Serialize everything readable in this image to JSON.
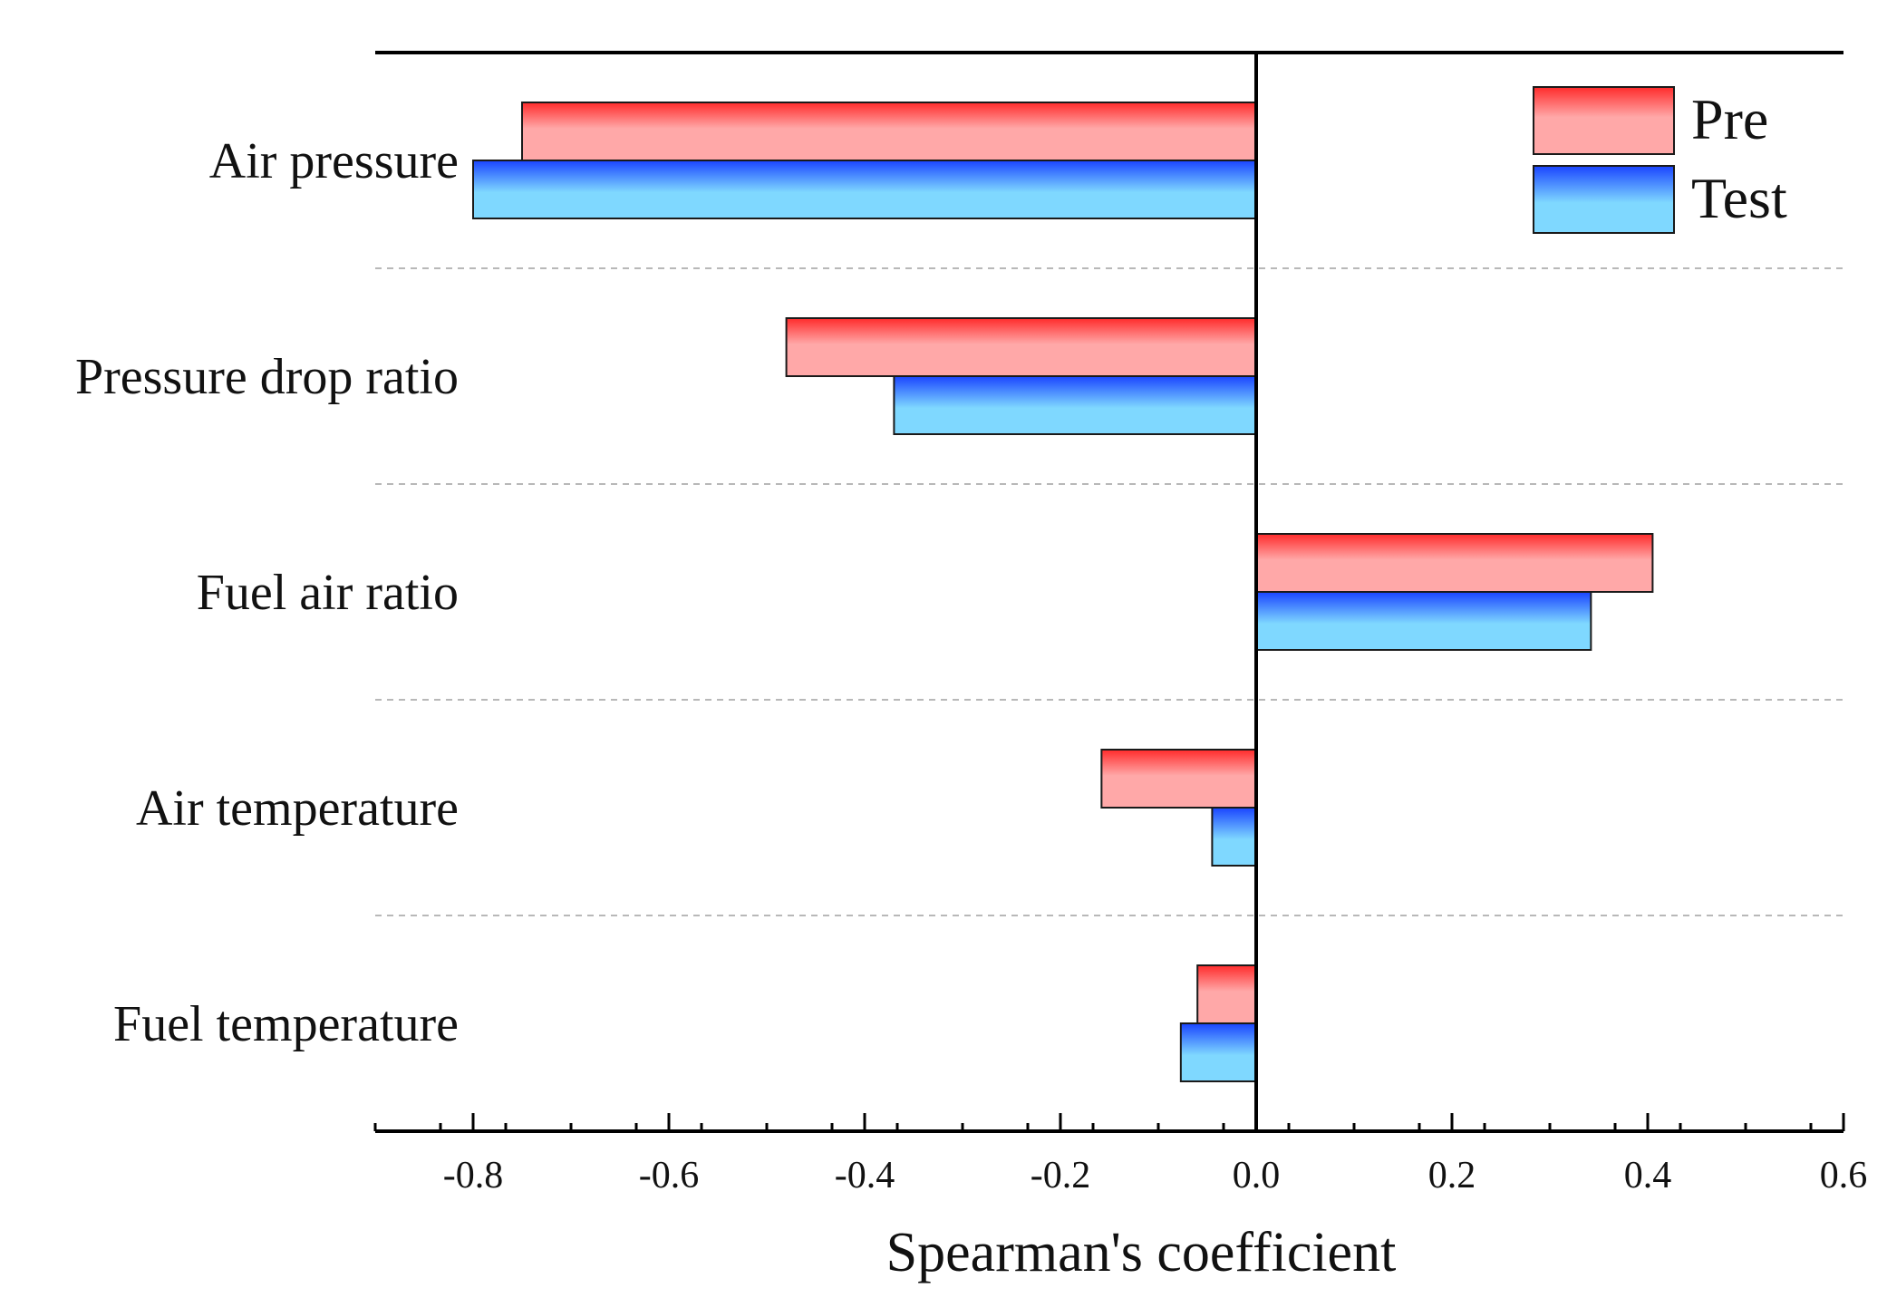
{
  "chart_data": {
    "type": "bar",
    "orientation": "horizontal",
    "xlabel": "Spearman's coefficient",
    "ylabel": "",
    "xlim": [
      -0.9,
      0.6
    ],
    "xticks": [
      -0.8,
      -0.6,
      -0.4,
      -0.2,
      0.0,
      0.2,
      0.4,
      0.6
    ],
    "xtick_labels": [
      "-0.8",
      "-0.6",
      "-0.4",
      "-0.2",
      "0.0",
      "0.2",
      "0.4",
      "0.6"
    ],
    "minor_tick_step": 0.066667,
    "categories": [
      "Air pressure",
      "Pressure drop ratio",
      "Fuel air ratio",
      "Air temperature",
      "Fuel temperature"
    ],
    "series": [
      {
        "name": "Pre",
        "values": [
          -0.75,
          -0.48,
          0.405,
          -0.158,
          -0.06
        ],
        "color": "#ff2b2b",
        "highlight": "#ffa8a8"
      },
      {
        "name": "Test",
        "values": [
          -0.8,
          -0.37,
          0.342,
          -0.045,
          -0.077
        ],
        "color": "#1a44ff",
        "highlight": "#7fd8ff"
      }
    ],
    "legend": {
      "position": "top-right",
      "entries": [
        "Pre",
        "Test"
      ]
    },
    "grid": "dashed separators between categories"
  },
  "colors": {
    "axis": "#000000",
    "grid": "#b8b8b8",
    "bar_outline": "#1a1a1a"
  }
}
